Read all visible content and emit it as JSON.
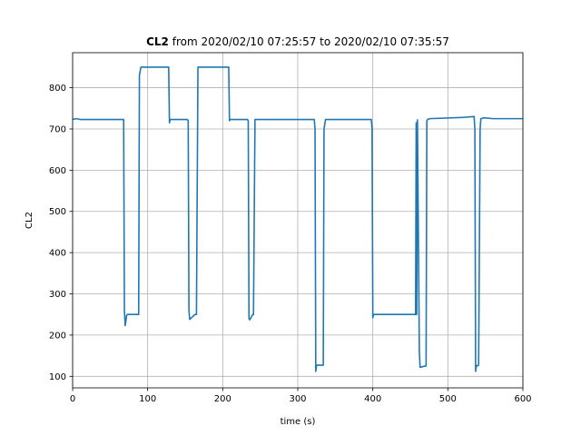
{
  "chart_data": {
    "type": "line",
    "title": {
      "bold": "CL2",
      "rest": " from 2020/02/10 07:25:57 to 2020/02/10 07:35:57"
    },
    "xlabel": "time (s)",
    "ylabel": "CL2",
    "xlim": [
      0,
      600
    ],
    "ylim": [
      72,
      885
    ],
    "xticks": [
      0,
      100,
      200,
      300,
      400,
      500,
      600
    ],
    "yticks": [
      100,
      200,
      300,
      400,
      500,
      600,
      700,
      800
    ],
    "grid": true,
    "line_color": "#1f77b4",
    "series": [
      {
        "x": [
          0,
          5,
          10,
          68,
          69,
          70,
          72,
          73,
          88,
          89,
          91,
          128,
          129,
          130,
          153,
          154,
          155,
          156,
          163,
          165,
          167,
          208,
          209,
          210,
          233,
          234,
          235,
          236,
          240,
          241,
          243,
          322,
          323,
          324,
          325,
          334,
          335,
          337,
          398,
          399,
          400,
          401,
          457,
          457.8,
          458.5,
          459.5,
          462,
          463,
          470,
          471,
          472,
          473,
          476,
          520,
          535,
          536,
          537,
          538,
          539,
          541,
          543,
          544,
          548,
          560,
          600
        ],
        "y": [
          723,
          725,
          723,
          723,
          260,
          223,
          248,
          250,
          250,
          830,
          850,
          850,
          715,
          723,
          723,
          720,
          260,
          238,
          250,
          250,
          850,
          850,
          720,
          723,
          723,
          720,
          240,
          237,
          250,
          250,
          723,
          723,
          700,
          112,
          127,
          127,
          700,
          723,
          723,
          700,
          242,
          250,
          250,
          715,
          250,
          722,
          160,
          122,
          125,
          125,
          720,
          723,
          725,
          728,
          730,
          700,
          112,
          127,
          125,
          127,
          700,
          725,
          727,
          725,
          725
        ]
      }
    ]
  }
}
